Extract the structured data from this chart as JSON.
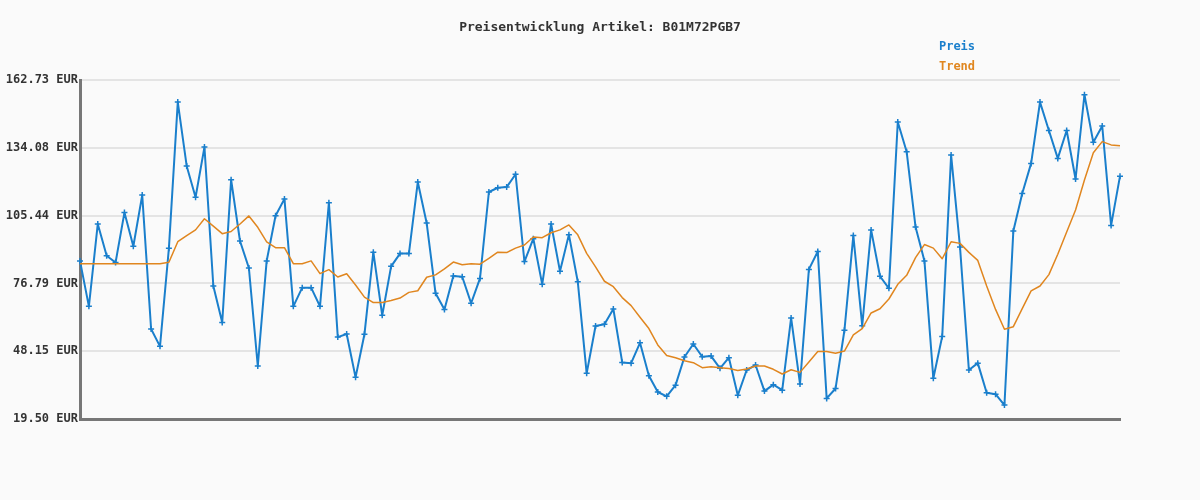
{
  "chart_data": {
    "type": "line",
    "title": "Preisentwicklung Artikel: B01M72PGB7",
    "categories": [
      null,
      null,
      null,
      null,
      null,
      null,
      null,
      null,
      null,
      null,
      null,
      null,
      null,
      null,
      null,
      null,
      null,
      null,
      null,
      null,
      null,
      null,
      null,
      null,
      null,
      null,
      null,
      null,
      null,
      null,
      null,
      null,
      null,
      null,
      null,
      null,
      null,
      null,
      null,
      null,
      null,
      null,
      null,
      null,
      null,
      null,
      null,
      null,
      null,
      null,
      null,
      null,
      null,
      null,
      null,
      null,
      null,
      null,
      null,
      null,
      null,
      null,
      null,
      null,
      null,
      null,
      null,
      null,
      null,
      null,
      null,
      null,
      null,
      null,
      null,
      null,
      null,
      null,
      null,
      null,
      null,
      null,
      null,
      null,
      null,
      null,
      null,
      null,
      null,
      null,
      null,
      null,
      null,
      null,
      null,
      null,
      null,
      null,
      null,
      null,
      null,
      null,
      null,
      null,
      null,
      null,
      null,
      null,
      null,
      null,
      null,
      null,
      null,
      null,
      null,
      null,
      null,
      null
    ],
    "series": [
      {
        "name": "Preis",
        "color": "#1a7fcc",
        "marker": "cross",
        "values": [
          86.3,
          67.1,
          101.9,
          88.5,
          85.6,
          106.7,
          92.5,
          114.1,
          57.5,
          50.2,
          91.6,
          153.4,
          126.4,
          113.2,
          134.4,
          75.7,
          60.3,
          120.6,
          94.7,
          83.3,
          41.9,
          86.3,
          105.4,
          112.5,
          67.1,
          75.0,
          75.0,
          67.1,
          110.9,
          54.1,
          55.4,
          37.1,
          55.3,
          90.0,
          63.3,
          84.0,
          89.4,
          89.4,
          119.6,
          102.3,
          72.6,
          65.8,
          79.9,
          79.6,
          68.4,
          78.9,
          115.4,
          117.2,
          117.5,
          122.9,
          86.0,
          95.7,
          76.4,
          101.9,
          81.9,
          97.4,
          77.5,
          38.8,
          58.8,
          59.5,
          66.0,
          43.4,
          43.1,
          51.7,
          37.8,
          30.9,
          29.1,
          33.8,
          45.7,
          51.2,
          45.8,
          46.1,
          40.9,
          45.4,
          29.5,
          40.2,
          42.3,
          31.3,
          34.0,
          31.7,
          62.2,
          34.3,
          82.7,
          90.3,
          28.2,
          32.4,
          57.0,
          97.0,
          58.9,
          99.4,
          79.8,
          74.7,
          145.0,
          132.4,
          100.6,
          86.3,
          36.7,
          54.4,
          131.0,
          92.2,
          40.2,
          43.1,
          30.6,
          30.0,
          25.4,
          98.9,
          114.8,
          127.5,
          153.4,
          141.4,
          129.6,
          141.4,
          120.9,
          156.5,
          136.4,
          143.3,
          101.3,
          122.1
        ]
      },
      {
        "name": "Trend",
        "color": "#e0861f",
        "marker": "none",
        "values": [
          85.1,
          85.1,
          85.1,
          85.1,
          85.1,
          85.1,
          85.1,
          85.1,
          85.1,
          85.1,
          85.7,
          94.4,
          97.0,
          99.4,
          104.1,
          101.0,
          97.8,
          98.7,
          101.9,
          105.3,
          100.5,
          94.3,
          91.9,
          91.9,
          85.1,
          85.1,
          86.3,
          80.9,
          82.6,
          79.5,
          80.9,
          76.1,
          71.0,
          68.7,
          68.7,
          69.6,
          70.6,
          73.0,
          73.7,
          79.4,
          80.4,
          82.9,
          85.8,
          84.7,
          85.1,
          84.9,
          87.4,
          90.0,
          89.8,
          91.7,
          93.0,
          96.4,
          96.1,
          98.2,
          99.4,
          101.5,
          97.3,
          89.5,
          83.8,
          77.7,
          75.4,
          70.8,
          67.4,
          62.5,
          57.7,
          50.8,
          46.3,
          45.4,
          44.1,
          43.3,
          41.2,
          41.6,
          41.2,
          40.8,
          40.0,
          40.6,
          41.9,
          41.9,
          40.5,
          38.5,
          40.3,
          39.2,
          43.6,
          48.0,
          48.0,
          47.3,
          48.2,
          55.0,
          57.7,
          64.3,
          66.1,
          70.2,
          76.4,
          80.2,
          87.7,
          93.2,
          91.7,
          87.2,
          94.4,
          93.7,
          89.9,
          86.5,
          75.7,
          65.8,
          57.4,
          58.5,
          66.1,
          73.6,
          75.7,
          80.5,
          89.1,
          98.5,
          107.8,
          120.5,
          132.0,
          136.7,
          135.3,
          134.9
        ]
      }
    ],
    "ylim": [
      19.5,
      162.73
    ],
    "yticks": [
      {
        "value": 19.5,
        "label": "19.50 EUR"
      },
      {
        "value": 48.15,
        "label": "48.15 EUR"
      },
      {
        "value": 76.79,
        "label": "76.79 EUR"
      },
      {
        "value": 105.44,
        "label": "105.44 EUR"
      },
      {
        "value": 134.08,
        "label": "134.08 EUR"
      },
      {
        "value": 162.73,
        "label": "162.73 EUR"
      }
    ],
    "grid": "y",
    "legend": "top right",
    "line_style": "solid"
  }
}
